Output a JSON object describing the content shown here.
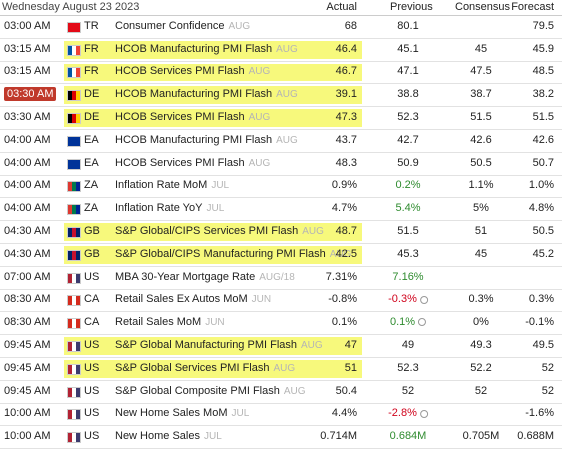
{
  "header": {
    "date": "Wednesday August 23 2023",
    "columns": [
      "Actual",
      "Previous",
      "Consensus",
      "Forecast"
    ]
  },
  "rows": [
    {
      "time": "03:00 AM",
      "country": "TR",
      "flag": [
        "#e30a17",
        "#e30a17",
        "#e30a17"
      ],
      "event": "Consumer Confidence",
      "period": "AUG",
      "actual": "68",
      "previous": "80.1",
      "consensus": null,
      "forecast": "79.5"
    },
    {
      "time": "03:15 AM",
      "country": "FR",
      "flag": [
        "#0055a4",
        "#ffffff",
        "#ef4135"
      ],
      "event": "HCOB Manufacturing PMI Flash",
      "period": "AUG",
      "actual": "46.4",
      "previous": "45.1",
      "consensus": "45",
      "forecast": "45.9",
      "highlight": true
    },
    {
      "time": "03:15 AM",
      "country": "FR",
      "flag": [
        "#0055a4",
        "#ffffff",
        "#ef4135"
      ],
      "event": "HCOB Services PMI Flash",
      "period": "AUG",
      "actual": "46.7",
      "previous": "47.1",
      "consensus": "47.5",
      "forecast": "48.5",
      "highlight": true
    },
    {
      "time": "03:30 AM",
      "country": "DE",
      "flag": [
        "#000000",
        "#dd0000",
        "#ffce00"
      ],
      "event": "HCOB Manufacturing PMI Flash",
      "period": "AUG",
      "actual": "39.1",
      "previous": "38.8",
      "consensus": "38.7",
      "forecast": "38.2",
      "highlight": true,
      "time_highlight": true
    },
    {
      "time": "03:30 AM",
      "country": "DE",
      "flag": [
        "#000000",
        "#dd0000",
        "#ffce00"
      ],
      "event": "HCOB Services PMI Flash",
      "period": "AUG",
      "actual": "47.3",
      "previous": "52.3",
      "consensus": "51.5",
      "forecast": "51.5",
      "highlight": true
    },
    {
      "time": "04:00 AM",
      "country": "EA",
      "flag": [
        "#003399",
        "#003399",
        "#003399"
      ],
      "event": "HCOB Manufacturing PMI Flash",
      "period": "AUG",
      "actual": "43.7",
      "previous": "42.7",
      "consensus": "42.6",
      "forecast": "42.6"
    },
    {
      "time": "04:00 AM",
      "country": "EA",
      "flag": [
        "#003399",
        "#003399",
        "#003399"
      ],
      "event": "HCOB Services PMI Flash",
      "period": "AUG",
      "actual": "48.3",
      "previous": "50.9",
      "consensus": "50.5",
      "forecast": "50.7"
    },
    {
      "time": "04:00 AM",
      "country": "ZA",
      "flag": [
        "#de3831",
        "#007a4d",
        "#002395"
      ],
      "event": "Inflation Rate MoM",
      "period": "JUL",
      "actual": "0.9%",
      "previous": "0.2%",
      "previous_color": "#2e8b2e",
      "consensus": "1.1%",
      "forecast": "1.0%"
    },
    {
      "time": "04:00 AM",
      "country": "ZA",
      "flag": [
        "#de3831",
        "#007a4d",
        "#002395"
      ],
      "event": "Inflation Rate YoY",
      "period": "JUL",
      "actual": "4.7%",
      "previous": "5.4%",
      "previous_color": "#2e8b2e",
      "consensus": "5%",
      "forecast": "4.8%"
    },
    {
      "time": "04:30 AM",
      "country": "GB",
      "flag": [
        "#012169",
        "#c8102e",
        "#012169"
      ],
      "event": "S&P Global/CIPS Services PMI Flash",
      "period": "AUG",
      "actual": "48.7",
      "previous": "51.5",
      "consensus": "51",
      "forecast": "50.5",
      "highlight": true
    },
    {
      "time": "04:30 AM",
      "country": "GB",
      "flag": [
        "#012169",
        "#c8102e",
        "#012169"
      ],
      "event": "S&P Global/CIPS Manufacturing PMI Flash",
      "period": "AUG",
      "actual": "42.5",
      "previous": "45.3",
      "consensus": "45",
      "forecast": "45.2",
      "highlight": true
    },
    {
      "time": "07:00 AM",
      "country": "US",
      "flag": [
        "#b22234",
        "#ffffff",
        "#3c3b6e"
      ],
      "event": "MBA 30-Year Mortgage Rate",
      "period": "AUG/18",
      "actual": "7.31%",
      "previous": "7.16%",
      "previous_color": "#2e8b2e",
      "consensus": null,
      "forecast": null
    },
    {
      "time": "08:30 AM",
      "country": "CA",
      "flag": [
        "#d52b1e",
        "#ffffff",
        "#d52b1e"
      ],
      "event": "Retail Sales Ex Autos MoM",
      "period": "JUN",
      "actual": "-0.8%",
      "previous": "-0.3%",
      "previous_color": "#d0021b",
      "revised": true,
      "consensus": "0.3%",
      "forecast": "0.3%"
    },
    {
      "time": "08:30 AM",
      "country": "CA",
      "flag": [
        "#d52b1e",
        "#ffffff",
        "#d52b1e"
      ],
      "event": "Retail Sales MoM",
      "period": "JUN",
      "actual": "0.1%",
      "previous": "0.1%",
      "previous_color": "#2e8b2e",
      "revised": true,
      "consensus": "0%",
      "forecast": "-0.1%"
    },
    {
      "time": "09:45 AM",
      "country": "US",
      "flag": [
        "#b22234",
        "#ffffff",
        "#3c3b6e"
      ],
      "event": "S&P Global Manufacturing PMI Flash",
      "period": "AUG",
      "actual": "47",
      "previous": "49",
      "consensus": "49.3",
      "forecast": "49.5",
      "highlight": true
    },
    {
      "time": "09:45 AM",
      "country": "US",
      "flag": [
        "#b22234",
        "#ffffff",
        "#3c3b6e"
      ],
      "event": "S&P Global Services PMI Flash",
      "period": "AUG",
      "actual": "51",
      "previous": "52.3",
      "consensus": "52.2",
      "forecast": "52",
      "highlight": true
    },
    {
      "time": "09:45 AM",
      "country": "US",
      "flag": [
        "#b22234",
        "#ffffff",
        "#3c3b6e"
      ],
      "event": "S&P Global Composite PMI Flash",
      "period": "AUG",
      "actual": "50.4",
      "previous": "52",
      "consensus": "52",
      "forecast": "52"
    },
    {
      "time": "10:00 AM",
      "country": "US",
      "flag": [
        "#b22234",
        "#ffffff",
        "#3c3b6e"
      ],
      "event": "New Home Sales MoM",
      "period": "JUL",
      "actual": "4.4%",
      "previous": "-2.8%",
      "previous_color": "#d0021b",
      "revised": true,
      "consensus": null,
      "forecast": "-1.6%"
    },
    {
      "time": "10:00 AM",
      "country": "US",
      "flag": [
        "#b22234",
        "#ffffff",
        "#3c3b6e"
      ],
      "event": "New Home Sales",
      "period": "JUL",
      "actual": "0.714M",
      "previous": "0.684M",
      "previous_color": "#2e8b2e",
      "consensus": "0.705M",
      "forecast": "0.688M"
    }
  ]
}
